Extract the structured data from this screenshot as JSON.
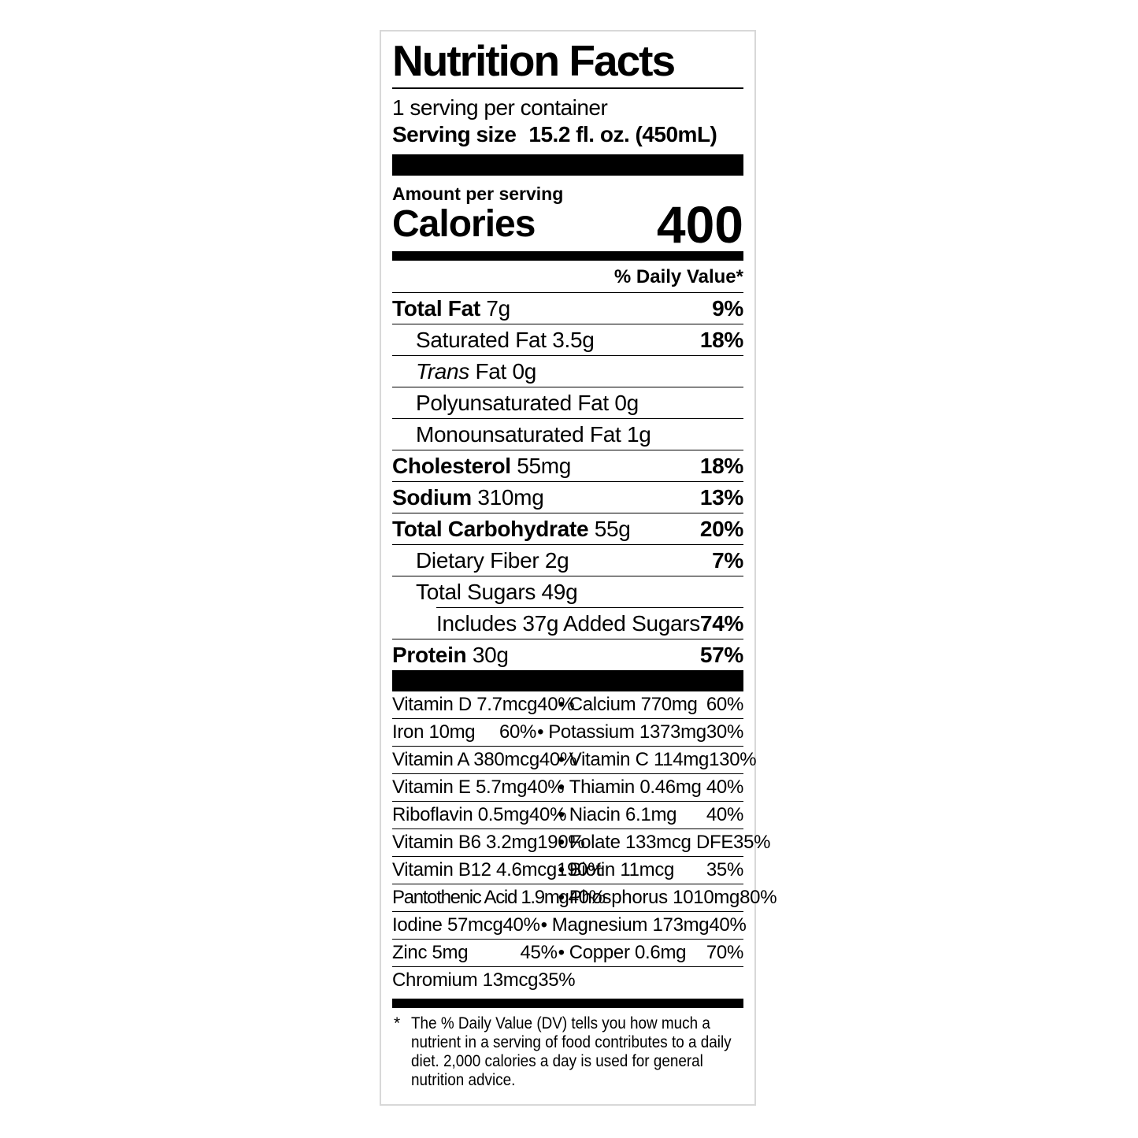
{
  "colors": {
    "background": "#ffffff",
    "text": "#000000",
    "divider": "#000000",
    "thick_bar": "#000000",
    "label_border": "#d8d8d8"
  },
  "label": {
    "title": "Nutrition Facts",
    "servings_per_container": "1 serving per container",
    "serving_size_label": "Serving size",
    "serving_size_value": "15.2 fl. oz. (450mL)",
    "amount_per_serving_label": "Amount per serving",
    "calories_label": "Calories",
    "calories_value": "400",
    "daily_value_header": "% Daily Value*",
    "bullet": "•",
    "nutrients": [
      {
        "name": "Total Fat",
        "amount": "7g",
        "dv": "9%",
        "bold": true,
        "indent": 0
      },
      {
        "name": "Saturated Fat",
        "amount": "3.5g",
        "dv": "18%",
        "indent": 1
      },
      {
        "name_italic": "Trans",
        "name": "Fat",
        "amount": "0g",
        "dv": "",
        "indent": 1
      },
      {
        "name": "Polyunsaturated Fat",
        "amount": "0g",
        "dv": "",
        "indent": 1
      },
      {
        "name": "Monounsaturated Fat",
        "amount": "1g",
        "dv": "",
        "indent": 1
      },
      {
        "name": "Cholesterol",
        "amount": "55mg",
        "dv": "18%",
        "bold": true,
        "indent": 0
      },
      {
        "name": "Sodium",
        "amount": "310mg",
        "dv": "13%",
        "bold": true,
        "indent": 0
      },
      {
        "name": "Total Carbohydrate",
        "amount": "55g",
        "dv": "20%",
        "bold": true,
        "indent": 0
      },
      {
        "name": "Dietary Fiber",
        "amount": "2g",
        "dv": "7%",
        "indent": 1
      },
      {
        "name": "Total Sugars",
        "amount": "49g",
        "dv": "",
        "indent": 1
      },
      {
        "name": "Includes 37g Added Sugars",
        "amount": "",
        "dv": "74%",
        "indent": 2,
        "partial_rule": true
      },
      {
        "name": "Protein",
        "amount": "30g",
        "dv": "57%",
        "bold": true,
        "indent": 0
      }
    ],
    "micronutrient_rows": [
      {
        "left": {
          "name": "Vitamin D",
          "amount": "7.7mcg",
          "dv": "40%"
        },
        "right": {
          "name": "Calcium",
          "amount": "770mg",
          "dv": "60%"
        }
      },
      {
        "left": {
          "name": "Iron",
          "amount": "10mg",
          "dv": "60%"
        },
        "right": {
          "name": "Potassium",
          "amount": "1373mg",
          "dv": "30%"
        }
      },
      {
        "left": {
          "name": "Vitamin A",
          "amount": "380mcg",
          "dv": "40%"
        },
        "right": {
          "name": "Vitamin C",
          "amount": "114mg",
          "dv": "130%"
        }
      },
      {
        "left": {
          "name": "Vitamin E",
          "amount": "5.7mg",
          "dv": "40%"
        },
        "right": {
          "name": "Thiamin",
          "amount": "0.46mg",
          "dv": "40%"
        }
      },
      {
        "left": {
          "name": "Riboflavin",
          "amount": "0.5mg",
          "dv": "40%"
        },
        "right": {
          "name": "Niacin",
          "amount": "6.1mg",
          "dv": "40%"
        }
      },
      {
        "left": {
          "name": "Vitamin B6",
          "amount": "3.2mg",
          "dv": "190%"
        },
        "right": {
          "name": "Folate",
          "amount": "133mcg DFE",
          "dv": "35%"
        }
      },
      {
        "left": {
          "name": "Vitamin B12",
          "amount": "4.6mcg",
          "dv": "190%"
        },
        "right": {
          "name": "Biotin",
          "amount": "11mcg",
          "dv": "35%"
        }
      },
      {
        "left": {
          "name": "Pantothenic Acid",
          "amount": "1.9mg",
          "dv": "40%"
        },
        "right": {
          "name": "Phosphorus",
          "amount": "1010mg",
          "dv": "80%"
        }
      },
      {
        "left": {
          "name": "Iodine",
          "amount": "57mcg",
          "dv": "40%"
        },
        "right": {
          "name": "Magnesium",
          "amount": "173mg",
          "dv": "40%"
        }
      },
      {
        "left": {
          "name": "Zinc",
          "amount": "5mg",
          "dv": "45%"
        },
        "right": {
          "name": "Copper",
          "amount": "0.6mg",
          "dv": "70%"
        }
      },
      {
        "left": {
          "name": "Chromium",
          "amount": "13mcg",
          "dv": "35%"
        },
        "right": null
      }
    ],
    "footnote_marker": "*",
    "footnote": "The % Daily Value (DV) tells you how much a nutrient in a serving of food contributes to a daily diet. 2,000 calories a day is used for general nutrition advice."
  }
}
